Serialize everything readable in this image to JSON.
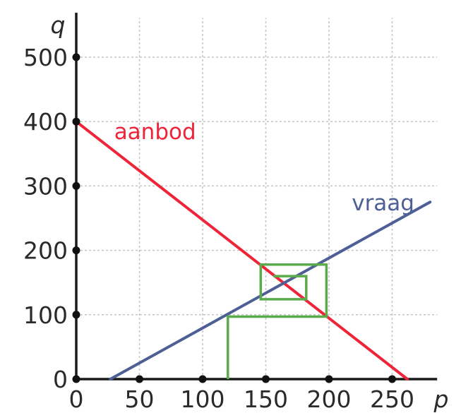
{
  "chart_data": {
    "type": "line",
    "xlabel": "p",
    "ylabel": "q",
    "xlim": [
      0,
      280
    ],
    "ylim": [
      0,
      550
    ],
    "x_ticks": [
      0,
      50,
      100,
      150,
      200,
      250
    ],
    "y_ticks": [
      0,
      100,
      200,
      300,
      400,
      500
    ],
    "x_tick_labels": [
      "0",
      "50",
      "100",
      "150",
      "200",
      "250"
    ],
    "y_tick_labels": [
      "0",
      "100",
      "200",
      "300",
      "400",
      "500"
    ],
    "grid": true,
    "series": [
      {
        "name": "aanbod",
        "color": "#ee2438",
        "points": [
          [
            0,
            400
          ],
          [
            262,
            0
          ]
        ]
      },
      {
        "name": "vraag",
        "color": "#4e5f96",
        "points": [
          [
            27,
            0
          ],
          [
            280,
            275
          ]
        ]
      }
    ],
    "cobweb": {
      "color": "#5aab4a",
      "points": [
        [
          120,
          0
        ],
        [
          120,
          97
        ],
        [
          198,
          97
        ],
        [
          198,
          178
        ],
        [
          146,
          178
        ],
        [
          146,
          124
        ],
        [
          182,
          124
        ],
        [
          182,
          160
        ],
        [
          156,
          160
        ]
      ]
    }
  }
}
